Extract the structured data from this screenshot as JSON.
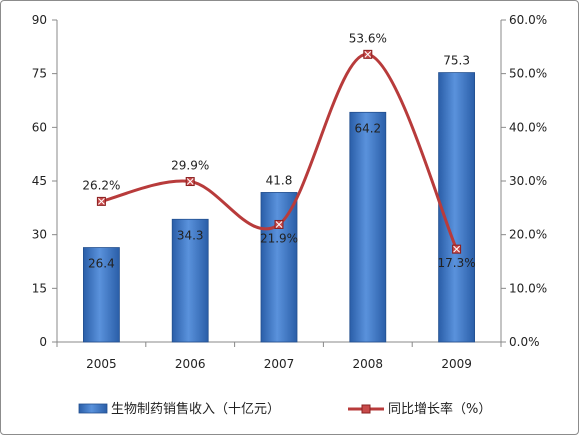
{
  "chart_data": {
    "type": "bar",
    "categories": [
      "2005",
      "2006",
      "2007",
      "2008",
      "2009"
    ],
    "series": [
      {
        "name": "生物制药销售收入（十亿元）",
        "type": "bar",
        "axis": "left",
        "values": [
          26.4,
          34.3,
          41.8,
          64.2,
          75.3
        ],
        "labels": [
          "26.4",
          "34.3",
          "41.8",
          "64.2",
          "75.3"
        ],
        "color": "#3d77c4"
      },
      {
        "name": "同比增长率（%）",
        "type": "line",
        "axis": "right",
        "values": [
          26.2,
          29.9,
          21.9,
          53.6,
          17.3
        ],
        "labels": [
          "26.2%",
          "29.9%",
          "21.9%",
          "53.6%",
          "17.3%"
        ],
        "color": "#b83b3b"
      }
    ],
    "y_left": {
      "lim": [
        0,
        90
      ],
      "ticks": [
        "0",
        "15",
        "30",
        "45",
        "60",
        "75",
        "90"
      ]
    },
    "y_right": {
      "lim": [
        0,
        60
      ],
      "ticks": [
        "0.0%",
        "10.0%",
        "20.0%",
        "30.0%",
        "40.0%",
        "50.0%",
        "60.0%"
      ]
    },
    "legend": {
      "position": "bottom"
    },
    "grid": false
  }
}
